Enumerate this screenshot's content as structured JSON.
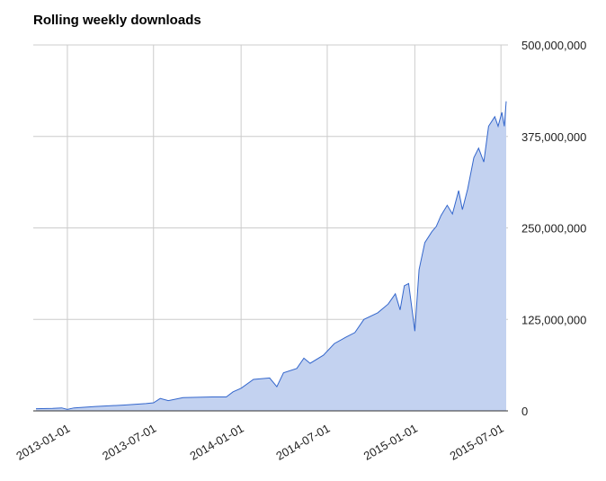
{
  "chart_data": {
    "type": "area",
    "title": "Rolling weekly downloads",
    "color": "#3366cc",
    "fill": "#c3d2f0",
    "grid": true,
    "x": [
      "2012-10-27",
      "2012-12-01",
      "2012-12-20",
      "2013-01-01",
      "2013-01-15",
      "2013-03-01",
      "2013-05-01",
      "2013-06-15",
      "2013-07-01",
      "2013-07-15",
      "2013-08-01",
      "2013-09-01",
      "2013-11-01",
      "2013-12-01",
      "2013-12-15",
      "2014-01-01",
      "2014-01-27",
      "2014-03-02",
      "2014-03-17",
      "2014-03-31",
      "2014-04-28",
      "2014-05-13",
      "2014-05-26",
      "2014-06-23",
      "2014-07-16",
      "2014-08-10",
      "2014-08-28",
      "2014-09-16",
      "2014-10-15",
      "2014-11-06",
      "2014-11-21",
      "2014-12-01",
      "2014-12-10",
      "2014-12-19",
      "2015-01-01",
      "2015-01-10",
      "2015-01-22",
      "2015-02-06",
      "2015-02-15",
      "2015-02-25",
      "2015-03-10",
      "2015-03-21",
      "2015-04-03",
      "2015-04-11",
      "2015-04-22",
      "2015-05-05",
      "2015-05-15",
      "2015-05-26",
      "2015-06-05",
      "2015-06-18",
      "2015-06-25",
      "2015-07-03",
      "2015-07-08",
      "2015-07-12"
    ],
    "values": [
      3000000,
      3500000,
      4000000,
      2000000,
      4000000,
      6000000,
      8000000,
      10000000,
      11000000,
      17000000,
      14000000,
      18000000,
      19000000,
      19000000,
      26000000,
      31000000,
      43000000,
      45000000,
      33000000,
      52000000,
      58000000,
      72000000,
      65000000,
      76000000,
      92000000,
      101000000,
      107000000,
      125000000,
      134000000,
      146000000,
      160000000,
      138000000,
      171000000,
      174000000,
      109000000,
      193000000,
      230000000,
      245000000,
      252000000,
      267000000,
      281000000,
      269000000,
      301000000,
      275000000,
      303000000,
      346000000,
      359000000,
      340000000,
      389000000,
      402000000,
      389000000,
      408000000,
      389000000,
      423000000
    ],
    "xlim": [
      "2012-10-27",
      "2015-07-12"
    ],
    "xticks": [
      "2013-01-01",
      "2013-07-01",
      "2014-01-01",
      "2014-07-01",
      "2015-01-01",
      "2015-07-01"
    ],
    "ylim": [
      0,
      500000000
    ],
    "yticks": [
      0,
      {
        "value": 125000000,
        "label": "125,000,000"
      },
      {
        "value": 250000000,
        "label": "250,000,000"
      },
      {
        "value": 375000000,
        "label": "375,000,000"
      },
      {
        "value": 500000000,
        "label": "500,000,000"
      }
    ]
  }
}
